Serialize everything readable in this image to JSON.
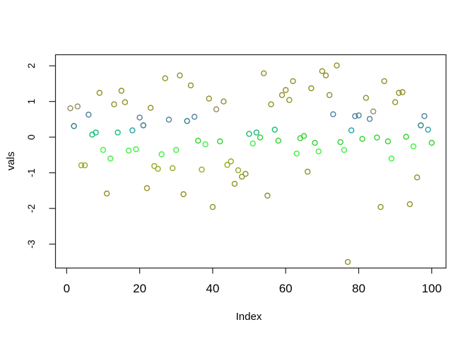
{
  "figure": {
    "background": "#ffffff",
    "box_color": "#222222",
    "tick_color": "#222222",
    "text_color": "#000000"
  },
  "chart_data": {
    "type": "scatter",
    "title": "",
    "xlabel": "Index",
    "ylabel": "vals",
    "x_ticks": [
      0,
      20,
      40,
      60,
      80,
      100
    ],
    "y_ticks": [
      2,
      1,
      0,
      -1,
      -2,
      -3
    ],
    "xlim": [
      -3.06,
      103.92
    ],
    "ylim": [
      -3.67,
      2.31
    ],
    "grid": "off",
    "legend": "none",
    "marker": "open-circle",
    "palette": {
      "o": "#8f8f26",
      "k": "#908d5e",
      "b": "#4d7e9c",
      "d": "#2d7d8d",
      "c": "#1ba3a3",
      "s": "#13bd72",
      "g": "#2cd32c",
      "r": "#3ff03f",
      "y": "#90ad20"
    },
    "x": [
      1,
      2,
      3,
      4,
      5,
      6,
      7,
      8,
      9,
      10,
      11,
      12,
      13,
      14,
      15,
      16,
      17,
      18,
      19,
      20,
      21,
      22,
      23,
      24,
      25,
      26,
      27,
      28,
      29,
      30,
      31,
      32,
      33,
      34,
      35,
      36,
      37,
      38,
      39,
      40,
      41,
      42,
      43,
      44,
      45,
      46,
      47,
      48,
      49,
      50,
      51,
      52,
      53,
      54,
      55,
      56,
      57,
      58,
      59,
      60,
      61,
      62,
      63,
      64,
      65,
      66,
      67,
      68,
      69,
      70,
      71,
      72,
      73,
      74,
      75,
      76,
      77,
      78,
      79,
      80,
      81,
      82,
      83,
      84,
      85,
      86,
      87,
      88,
      89,
      90,
      91,
      92,
      93,
      94,
      95,
      96,
      97,
      98,
      99,
      100
    ],
    "y": [
      0.81,
      0.31,
      0.86,
      -0.79,
      -0.79,
      0.63,
      0.07,
      0.13,
      1.24,
      -0.36,
      -1.58,
      -0.6,
      0.92,
      0.13,
      1.3,
      0.98,
      -0.38,
      0.19,
      -0.34,
      0.55,
      0.33,
      -1.43,
      0.82,
      -0.81,
      -0.89,
      -0.48,
      1.65,
      0.49,
      -0.87,
      -0.36,
      1.73,
      -1.6,
      0.45,
      1.45,
      0.57,
      -0.1,
      -0.91,
      -0.2,
      1.08,
      -1.96,
      0.78,
      -0.12,
      1.0,
      -0.78,
      -0.68,
      -1.31,
      -0.93,
      -1.11,
      -1.03,
      0.09,
      -0.18,
      0.13,
      -0.01,
      1.79,
      -1.64,
      0.92,
      0.21,
      -0.1,
      1.18,
      1.32,
      1.04,
      1.57,
      -0.46,
      -0.03,
      0.03,
      -0.97,
      1.37,
      -0.16,
      -0.4,
      1.85,
      1.73,
      1.18,
      0.64,
      2.01,
      -0.14,
      -0.36,
      -3.5,
      0.19,
      0.59,
      0.61,
      -0.05,
      1.1,
      0.51,
      0.72,
      -0.01,
      -1.96,
      1.57,
      -0.12,
      -0.6,
      0.98,
      1.24,
      1.26,
      0.01,
      -1.88,
      -0.26,
      -1.13,
      0.33,
      0.59,
      0.21,
      -0.16
    ],
    "point_colors": [
      "k",
      "d",
      "k",
      "y",
      "y",
      "b",
      "s",
      "s",
      "o",
      "r",
      "o",
      "r",
      "o",
      "s",
      "o",
      "o",
      "r",
      "c",
      "r",
      "b",
      "d",
      "o",
      "o",
      "y",
      "y",
      "r",
      "o",
      "b",
      "y",
      "r",
      "o",
      "o",
      "d",
      "o",
      "b",
      "g",
      "y",
      "r",
      "o",
      "o",
      "k",
      "g",
      "o",
      "y",
      "y",
      "o",
      "y",
      "o",
      "o",
      "s",
      "r",
      "s",
      "g",
      "o",
      "o",
      "o",
      "s",
      "g",
      "o",
      "o",
      "o",
      "o",
      "r",
      "g",
      "g",
      "o",
      "o",
      "g",
      "r",
      "o",
      "o",
      "o",
      "b",
      "o",
      "g",
      "r",
      "o",
      "c",
      "b",
      "b",
      "g",
      "o",
      "b",
      "k",
      "g",
      "o",
      "o",
      "g",
      "r",
      "o",
      "o",
      "o",
      "g",
      "o",
      "r",
      "o",
      "d",
      "b",
      "c",
      "g"
    ]
  }
}
